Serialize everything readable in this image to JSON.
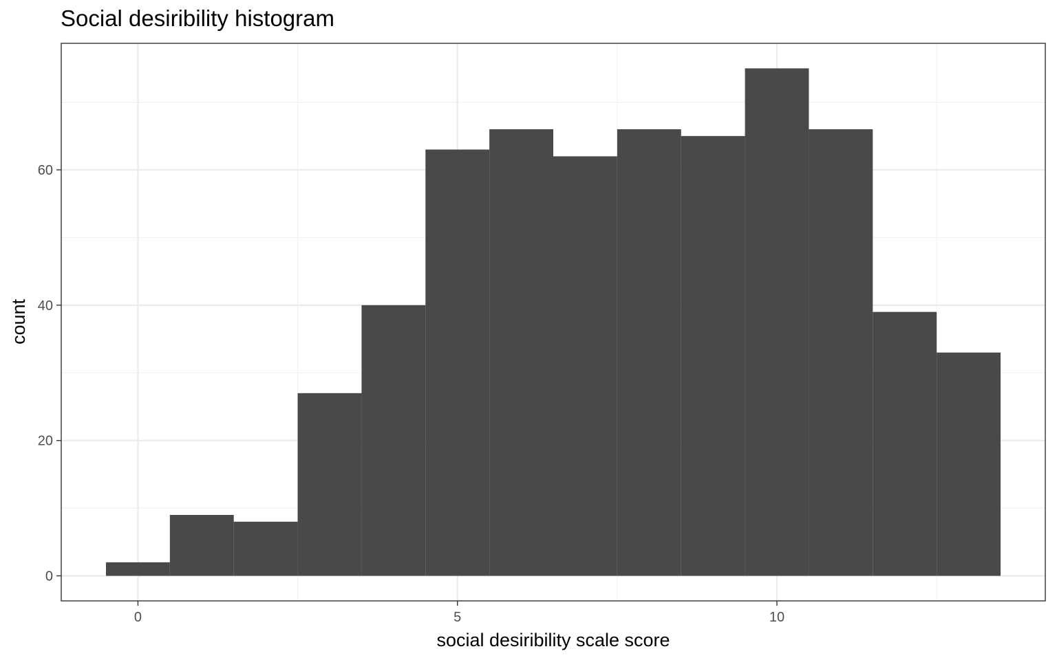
{
  "chart_data": {
    "type": "bar",
    "title": "Social desiribility histogram",
    "xlabel": "social desiribility scale score",
    "ylabel": "count",
    "bin_width": 1,
    "x": [
      0,
      1,
      2,
      3,
      4,
      5,
      6,
      7,
      8,
      9,
      10,
      11,
      12,
      13
    ],
    "values": [
      2,
      9,
      8,
      27,
      40,
      63,
      66,
      62,
      66,
      65,
      75,
      66,
      39,
      33
    ],
    "xlim": [
      -1.2,
      14.2
    ],
    "ylim": [
      -3.7,
      78.7
    ],
    "x_ticks": [
      0,
      5,
      10
    ],
    "x_tick_labels": [
      "0",
      "5",
      "10"
    ],
    "y_ticks": [
      0,
      20,
      40,
      60
    ],
    "y_tick_labels": [
      "0",
      "20",
      "40",
      "60"
    ],
    "grid": true,
    "legend": "none",
    "colors": {
      "bar_fill": "#494949",
      "panel_border": "#333333",
      "grid_major": "#ebebeb",
      "grid_minor": "#f2f2f2",
      "tick_text": "#4d4d4d"
    }
  }
}
